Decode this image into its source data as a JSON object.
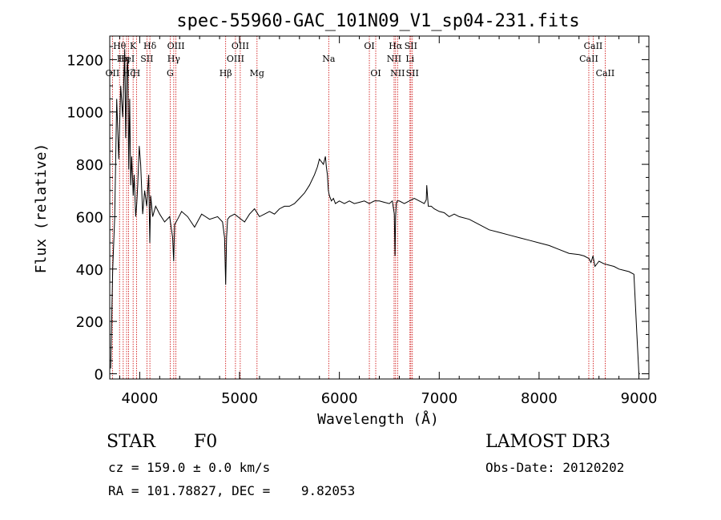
{
  "chart_data": {
    "type": "line",
    "title": "spec-55960-GAC_101N09_V1_sp04-231.fits",
    "xlabel": "Wavelength (Å)",
    "ylabel": "Flux (relative)",
    "xlim": [
      3700,
      9100
    ],
    "ylim": [
      -20,
      1290
    ],
    "xticks": [
      4000,
      5000,
      6000,
      7000,
      8000,
      9000
    ],
    "yticks": [
      0,
      200,
      400,
      600,
      800,
      1000,
      1200
    ],
    "xtick_labels": [
      "4000",
      "5000",
      "6000",
      "7000",
      "8000",
      "9000"
    ],
    "ytick_labels": [
      "0",
      "200",
      "400",
      "600",
      "800",
      "1000",
      "1200"
    ],
    "series": [
      {
        "name": "spectrum",
        "x": [
          3710,
          3730,
          3750,
          3770,
          3790,
          3810,
          3830,
          3850,
          3860,
          3870,
          3880,
          3890,
          3900,
          3910,
          3920,
          3935,
          3945,
          3960,
          3970,
          3980,
          3995,
          4010,
          4030,
          4050,
          4070,
          4090,
          4101,
          4110,
          4130,
          4160,
          4200,
          4250,
          4300,
          4330,
          4340,
          4350,
          4380,
          4420,
          4480,
          4550,
          4620,
          4700,
          4780,
          4830,
          4850,
          4861,
          4870,
          4880,
          4900,
          4950,
          5000,
          5050,
          5100,
          5150,
          5200,
          5250,
          5300,
          5350,
          5400,
          5450,
          5500,
          5550,
          5600,
          5650,
          5700,
          5750,
          5780,
          5800,
          5820,
          5840,
          5860,
          5870,
          5880,
          5890,
          5900,
          5920,
          5940,
          5960,
          6000,
          6050,
          6100,
          6150,
          6200,
          6250,
          6300,
          6350,
          6400,
          6450,
          6500,
          6530,
          6550,
          6557,
          6563,
          6570,
          6580,
          6600,
          6650,
          6700,
          6750,
          6800,
          6850,
          6870,
          6875,
          6890,
          6920,
          6950,
          7000,
          7050,
          7100,
          7150,
          7200,
          7300,
          7400,
          7500,
          7600,
          7700,
          7800,
          7900,
          8000,
          8100,
          8200,
          8300,
          8400,
          8450,
          8500,
          8520,
          8540,
          8560,
          8600,
          8650,
          8700,
          8750,
          8800,
          8850,
          8900,
          8950,
          8980,
          9000,
          9010
        ],
        "y": [
          20,
          400,
          600,
          1050,
          820,
          1100,
          980,
          1240,
          900,
          1150,
          1200,
          780,
          1050,
          720,
          830,
          680,
          760,
          600,
          650,
          720,
          870,
          800,
          610,
          700,
          640,
          760,
          500,
          680,
          600,
          640,
          610,
          580,
          600,
          520,
          430,
          570,
          590,
          620,
          600,
          560,
          610,
          590,
          600,
          580,
          520,
          340,
          520,
          590,
          600,
          610,
          595,
          580,
          610,
          630,
          600,
          610,
          620,
          610,
          630,
          640,
          640,
          650,
          670,
          690,
          720,
          760,
          790,
          820,
          810,
          800,
          830,
          790,
          760,
          700,
          680,
          660,
          670,
          650,
          660,
          650,
          660,
          650,
          655,
          660,
          650,
          660,
          660,
          655,
          650,
          660,
          610,
          450,
          600,
          650,
          660,
          660,
          650,
          660,
          670,
          660,
          650,
          665,
          720,
          640,
          640,
          630,
          620,
          615,
          600,
          610,
          600,
          590,
          570,
          550,
          540,
          530,
          520,
          510,
          500,
          490,
          475,
          460,
          455,
          450,
          440,
          425,
          450,
          410,
          430,
          420,
          415,
          410,
          400,
          395,
          390,
          380,
          150,
          0,
          0
        ]
      }
    ],
    "line_markers": [
      {
        "wavelength": 3727,
        "label": "OII",
        "row": 3
      },
      {
        "wavelength": 3798,
        "label": "Hθ",
        "row": 1
      },
      {
        "wavelength": 3835,
        "label": "Hη",
        "row": 2
      },
      {
        "wavelength": 3869,
        "label": "HeI",
        "row": 2
      },
      {
        "wavelength": 3889,
        "label": "Hζ",
        "row": 3
      },
      {
        "wavelength": 3934,
        "label": "K",
        "row": 1
      },
      {
        "wavelength": 3968,
        "label": "H",
        "row": 3
      },
      {
        "wavelength": 4072,
        "label": "SII",
        "row": 2
      },
      {
        "wavelength": 4102,
        "label": "Hδ",
        "row": 1
      },
      {
        "wavelength": 4305,
        "label": "G",
        "row": 3
      },
      {
        "wavelength": 4341,
        "label": "Hγ",
        "row": 2
      },
      {
        "wavelength": 4363,
        "label": "OIII",
        "row": 1
      },
      {
        "wavelength": 4861,
        "label": "Hβ",
        "row": 3
      },
      {
        "wavelength": 4959,
        "label": "OIII",
        "row": 2
      },
      {
        "wavelength": 5007,
        "label": "OIII",
        "row": 1
      },
      {
        "wavelength": 5175,
        "label": "Mg",
        "row": 3
      },
      {
        "wavelength": 5893,
        "label": "Na",
        "row": 2
      },
      {
        "wavelength": 6300,
        "label": "OI",
        "row": 1
      },
      {
        "wavelength": 6364,
        "label": "OI",
        "row": 3
      },
      {
        "wavelength": 6548,
        "label": "NII",
        "row": 2
      },
      {
        "wavelength": 6563,
        "label": "Hα",
        "row": 1
      },
      {
        "wavelength": 6583,
        "label": "NII",
        "row": 3
      },
      {
        "wavelength": 6707,
        "label": "Li",
        "row": 2
      },
      {
        "wavelength": 6716,
        "label": "SII",
        "row": 1
      },
      {
        "wavelength": 6731,
        "label": "SII",
        "row": 3
      },
      {
        "wavelength": 8498,
        "label": "CaII",
        "row": 2
      },
      {
        "wavelength": 8542,
        "label": "CaII",
        "row": 1
      },
      {
        "wavelength": 8662,
        "label": "CaII",
        "row": 3
      }
    ],
    "colors": {
      "spectrum": "#000000",
      "markers": "#cc0000",
      "axes": "#000000"
    }
  },
  "info": {
    "object_class": "STAR",
    "subclass": "F0",
    "survey": "LAMOST DR3",
    "redshift": "cz = 159.0 ± 0.0 km/s",
    "obs_date": "Obs-Date: 20120202",
    "coords": "RA = 101.78827, DEC =    9.82053"
  }
}
